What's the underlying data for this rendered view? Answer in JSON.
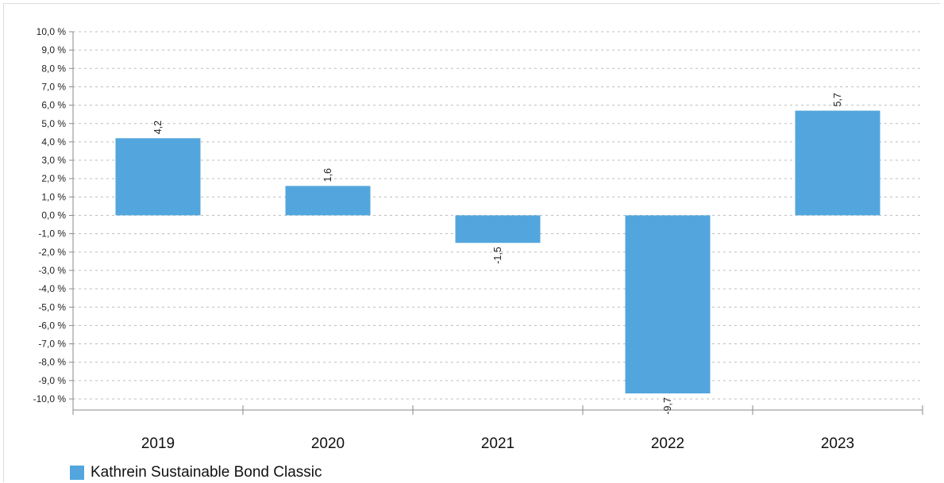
{
  "chart_data": {
    "type": "bar",
    "categories": [
      "2019",
      "2020",
      "2021",
      "2022",
      "2023"
    ],
    "series": [
      {
        "name": "Kathrein Sustainable Bond Classic",
        "values": [
          4.2,
          1.6,
          -1.5,
          -9.7,
          5.7
        ],
        "data_labels": [
          "4,2",
          "1,6",
          "-1,5",
          "-9,7",
          "5,7"
        ]
      }
    ],
    "ylim": [
      -10,
      10
    ],
    "ytick_labels": [
      "10,0 %",
      "9,0 %",
      "8,0 %",
      "7,0 %",
      "6,0 %",
      "5,0 %",
      "4,0 %",
      "3,0 %",
      "2,0 %",
      "1,0 %",
      "0,0 %",
      "-1,0 %",
      "-2,0 %",
      "-3,0 %",
      "-4,0 %",
      "-5,0 %",
      "-6,0 %",
      "-7,0 %",
      "-8,0 %",
      "-9,0 %",
      "-10,0 %"
    ],
    "grid": true,
    "legend_position": "bottom-left",
    "bar_color": "#52a6dd"
  }
}
